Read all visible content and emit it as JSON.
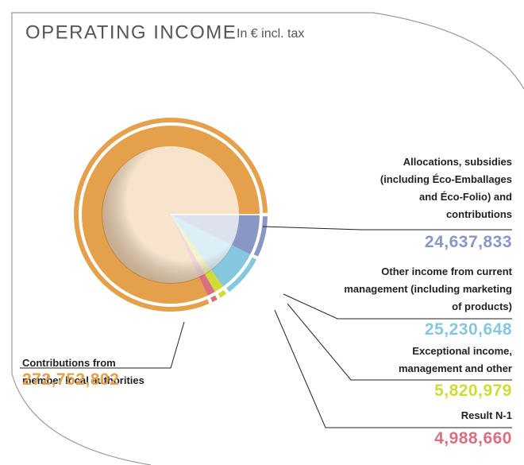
{
  "chart_data": {
    "type": "pie",
    "title": "OPERATING INCOME",
    "subtitle": "In € incl. tax",
    "categories": [
      "Allocations, subsidies (including Éco-Emballages and Éco-Folio) and contributions",
      "Other income from current management (including marketing of products)",
      "Exceptional income, management and other",
      "Result N-1",
      "Contributions from member local authorities"
    ],
    "values": [
      24637833,
      25230648,
      5820979,
      4988660,
      272752802
    ],
    "value_labels": [
      "24,637,833",
      "25,230,648",
      "5,820,979",
      "4,988,660",
      "272,752,802"
    ],
    "colors": [
      "#8a96c4",
      "#86c7e0",
      "#d2da3a",
      "#d8707f",
      "#e5a04b"
    ]
  }
}
